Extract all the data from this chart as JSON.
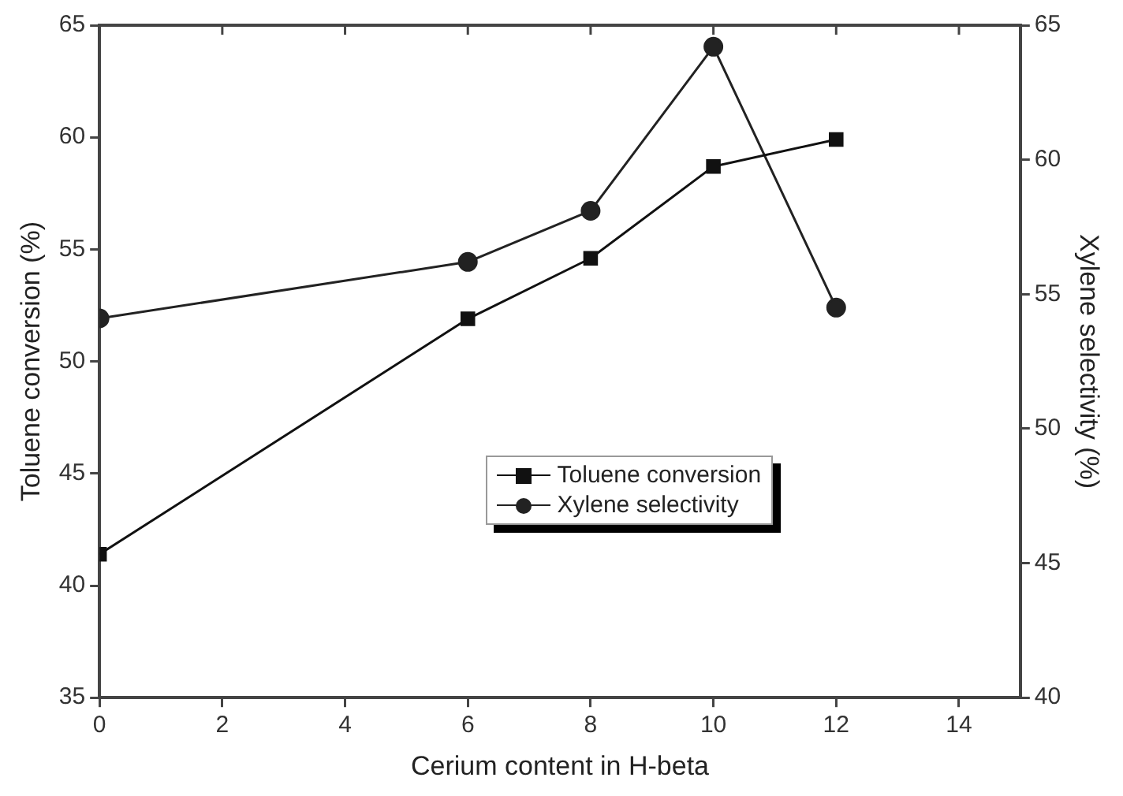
{
  "chart_data": {
    "type": "line",
    "xlabel": "Cerium content in H-beta",
    "ylabel": "Toluene conversion (%)",
    "y2label": "Xylene selectivity (%)",
    "x": [
      0,
      6,
      8,
      10,
      12
    ],
    "series": [
      {
        "name": "Toluene conversion",
        "color": "#111111",
        "marker": "square",
        "values": [
          41.4,
          51.9,
          54.6,
          58.7,
          59.9
        ]
      },
      {
        "name": "Xylene selectivity",
        "color": "#222222",
        "marker": "circle",
        "axis": "y2",
        "values": [
          54.1,
          56.2,
          58.1,
          64.2,
          54.5
        ]
      }
    ],
    "xlim": [
      0,
      15
    ],
    "xticks": [
      0,
      2,
      4,
      6,
      8,
      10,
      12,
      14
    ],
    "ylim": [
      35,
      65
    ],
    "yticks": [
      35,
      40,
      45,
      50,
      55,
      60,
      65
    ],
    "y2lim": [
      40,
      65
    ],
    "y2ticks": [
      40,
      45,
      50,
      55,
      60,
      65
    ],
    "grid": false,
    "legend": "center",
    "line_style": "solid"
  }
}
